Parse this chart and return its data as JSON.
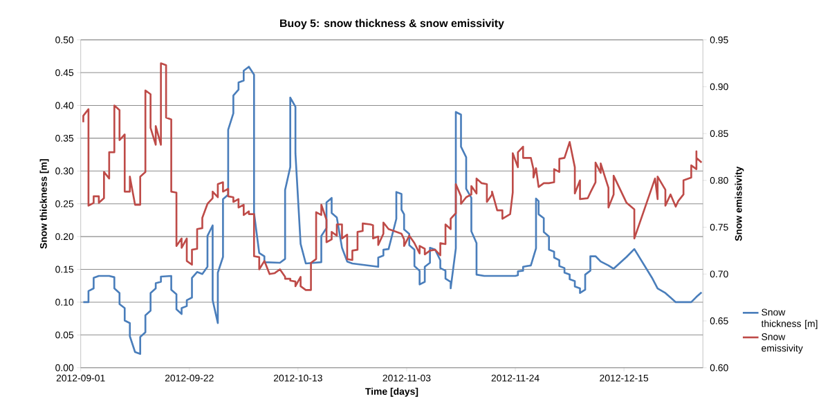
{
  "chart_data": {
    "type": "line",
    "title": "Buoy 5: snow thickness & snow emissivity",
    "xlabel": "Time [days]",
    "ylabel": "Snow thickness [m]",
    "y2label": "Snow emissivity",
    "xlim": [
      "2012-09-01",
      "2012-12-30T06:00"
    ],
    "xticks": [
      "2012-09-01",
      "2012-09-22",
      "2012-10-13",
      "2012-11-03",
      "2012-11-24",
      "2012-12-15"
    ],
    "ylim": [
      0,
      0.5
    ],
    "yticks": [
      {
        "value": 0,
        "label": "0.00"
      },
      {
        "value": 0.05,
        "label": "0.05"
      },
      {
        "value": 0.1,
        "label": "0.10"
      },
      {
        "value": 0.15,
        "label": "0.15"
      },
      {
        "value": 0.2,
        "label": "0.20"
      },
      {
        "value": 0.25,
        "label": "0.25"
      },
      {
        "value": 0.3,
        "label": "0.30"
      },
      {
        "value": 0.35,
        "label": "0.35"
      },
      {
        "value": 0.4,
        "label": "0.40"
      },
      {
        "value": 0.45,
        "label": "0.45"
      },
      {
        "value": 0.5,
        "label": "0.50"
      }
    ],
    "y2lim": [
      0.6,
      0.95
    ],
    "y2ticks": [
      {
        "value": 0.6,
        "label": "0.60"
      },
      {
        "value": 0.65,
        "label": "0.65"
      },
      {
        "value": 0.7,
        "label": "0.70"
      },
      {
        "value": 0.75,
        "label": "0.75"
      },
      {
        "value": 0.8,
        "label": "0.80"
      },
      {
        "value": 0.85,
        "label": "0.85"
      },
      {
        "value": 0.9,
        "label": "0.90"
      },
      {
        "value": 0.95,
        "label": "0.95"
      }
    ],
    "grid": "y",
    "legend": "right",
    "series": [
      {
        "name": "Snow thickness [m]",
        "color": "#4a7ebb",
        "x": [
          "2012-09-01T12:00",
          "2012-09-02T12:00",
          "2012-09-02T12:00",
          "2012-09-03T12:00",
          "2012-09-03T12:00",
          "2012-09-04T12:00",
          "2012-09-06T12:00",
          "2012-09-07T12:00",
          "2012-09-07T12:00",
          "2012-09-08T12:00",
          "2012-09-08T12:00",
          "2012-09-09T12:00",
          "2012-09-09T12:00",
          "2012-09-10T12:00",
          "2012-09-10T12:00",
          "2012-09-11T12:00",
          "2012-09-12T12:00",
          "2012-09-12T12:00",
          "2012-09-13T12:00",
          "2012-09-13T12:00",
          "2012-09-14T12:00",
          "2012-09-14T12:00",
          "2012-09-15T12:00",
          "2012-09-15T12:00",
          "2012-09-16T12:00",
          "2012-09-16T12:00",
          "2012-09-18T12:00",
          "2012-09-18T12:00",
          "2012-09-19T12:00",
          "2012-09-19T12:00",
          "2012-09-20T12:00",
          "2012-09-20T12:00",
          "2012-09-21T12:00",
          "2012-09-21T12:00",
          "2012-09-22T12:00",
          "2012-09-22T12:00",
          "2012-09-23T12:00",
          "2012-09-24T12:00",
          "2012-09-25T12:00",
          "2012-09-25T12:00",
          "2012-09-26T12:00",
          "2012-09-26T12:00",
          "2012-09-27T12:00",
          "2012-09-27T12:00",
          "2012-09-28T12:00",
          "2012-09-28T12:00",
          "2012-09-29T12:00",
          "2012-09-29T12:00",
          "2012-09-30T12:00",
          "2012-09-30T12:00",
          "2012-10-01T12:00",
          "2012-10-01T12:00",
          "2012-10-02T12:00",
          "2012-10-02T12:00",
          "2012-10-03T12:00",
          "2012-10-04T12:00",
          "2012-10-04T12:00",
          "2012-10-05T12:00",
          "2012-10-06T12:00",
          "2012-10-06T12:00",
          "2012-10-09T12:00",
          "2012-10-10T12:00",
          "2012-10-10T12:00",
          "2012-10-11T12:00",
          "2012-10-11T12:00",
          "2012-10-12T12:00",
          "2012-10-12T12:00",
          "2012-10-13T12:00",
          "2012-10-14T12:00",
          "2012-10-17T12:00",
          "2012-10-17T12:00",
          "2012-10-18T12:00",
          "2012-10-18T12:00",
          "2012-10-19T12:00",
          "2012-10-19T12:00",
          "2012-10-20T12:00",
          "2012-10-21T12:00",
          "2012-10-22T12:00",
          "2012-10-23T12:00",
          "2012-10-28T12:00",
          "2012-10-28T12:00",
          "2012-10-29T12:00",
          "2012-10-29T12:00",
          "2012-10-30T12:00",
          "2012-11-01",
          "2012-11-01",
          "2012-11-02",
          "2012-11-02",
          "2012-11-02T12:00",
          "2012-11-02T12:00",
          "2012-11-03T12:00",
          "2012-11-03T12:00",
          "2012-11-04T12:00",
          "2012-11-04T12:00",
          "2012-11-05T12:00",
          "2012-11-05T12:00",
          "2012-11-06T12:00",
          "2012-11-06T12:00",
          "2012-11-07T12:00",
          "2012-11-07T12:00",
          "2012-11-08T12:00",
          "2012-11-09T12:00",
          "2012-11-09T12:00",
          "2012-11-10T12:00",
          "2012-11-10T12:00",
          "2012-11-11T12:00",
          "2012-11-11T12:00",
          "2012-11-12T12:00",
          "2012-11-12T12:00",
          "2012-11-13T12:00",
          "2012-11-13T12:00",
          "2012-11-14T12:00",
          "2012-11-14T12:00",
          "2012-11-15T12:00",
          "2012-11-15T12:00",
          "2012-11-16T12:00",
          "2012-11-16T12:00",
          "2012-11-18",
          "2012-11-24",
          "2012-11-24T12:00",
          "2012-11-24T12:00",
          "2012-11-25T12:00",
          "2012-11-25T12:00",
          "2012-11-27",
          "2012-11-28",
          "2012-11-28",
          "2012-11-28T12:00",
          "2012-11-28T12:00",
          "2012-11-29T12:00",
          "2012-11-29T12:00",
          "2012-11-30T12:00",
          "2012-11-30T12:00",
          "2012-12-01T12:00",
          "2012-12-01T12:00",
          "2012-12-02T12:00",
          "2012-12-02T12:00",
          "2012-12-03T12:00",
          "2012-12-03T12:00",
          "2012-12-04T12:00",
          "2012-12-04T12:00",
          "2012-12-05T12:00",
          "2012-12-05T12:00",
          "2012-12-06T12:00",
          "2012-12-06T12:00",
          "2012-12-07T12:00",
          "2012-12-07T12:00",
          "2012-12-08T12:00",
          "2012-12-08T12:00",
          "2012-12-09T12:00",
          "2012-12-10T12:00",
          "2012-12-12",
          "2012-12-13",
          "2012-12-15T12:00",
          "2012-12-17",
          "2012-12-20T12:00",
          "2012-12-21T12:00",
          "2012-12-23",
          "2012-12-24",
          "2012-12-25",
          "2012-12-28",
          "2012-12-29",
          "2012-12-30"
        ],
        "values": [
          0.1,
          0.1,
          0.117,
          0.121,
          0.137,
          0.14,
          0.14,
          0.138,
          0.121,
          0.114,
          0.097,
          0.091,
          0.072,
          0.068,
          0.048,
          0.024,
          0.021,
          0.047,
          0.054,
          0.08,
          0.087,
          0.114,
          0.121,
          0.129,
          0.131,
          0.139,
          0.14,
          0.119,
          0.112,
          0.089,
          0.082,
          0.091,
          0.094,
          0.103,
          0.107,
          0.137,
          0.146,
          0.143,
          0.154,
          0.201,
          0.217,
          0.103,
          0.068,
          0.145,
          0.169,
          0.257,
          0.264,
          0.363,
          0.388,
          0.415,
          0.424,
          0.435,
          0.438,
          0.453,
          0.459,
          0.447,
          0.236,
          0.175,
          0.17,
          0.161,
          0.16,
          0.166,
          0.271,
          0.306,
          0.412,
          0.398,
          0.327,
          0.189,
          0.159,
          0.161,
          0.201,
          0.213,
          0.252,
          0.259,
          0.236,
          0.229,
          0.183,
          0.162,
          0.159,
          0.154,
          0.168,
          0.171,
          0.18,
          0.181,
          0.227,
          0.268,
          0.265,
          0.241,
          0.234,
          0.211,
          0.204,
          0.187,
          0.18,
          0.155,
          0.148,
          0.127,
          0.131,
          0.154,
          0.16,
          0.183,
          0.18,
          0.164,
          0.152,
          0.148,
          0.136,
          0.131,
          0.121,
          0.182,
          0.39,
          0.386,
          0.337,
          0.321,
          0.273,
          0.259,
          0.208,
          0.19,
          0.142,
          0.14,
          0.14,
          0.141,
          0.147,
          0.148,
          0.154,
          0.156,
          0.182,
          0.258,
          0.254,
          0.234,
          0.228,
          0.207,
          0.2,
          0.18,
          0.177,
          0.168,
          0.164,
          0.155,
          0.152,
          0.145,
          0.142,
          0.135,
          0.132,
          0.124,
          0.121,
          0.114,
          0.119,
          0.142,
          0.148,
          0.17,
          0.17,
          0.162,
          0.156,
          0.151,
          0.169,
          0.181,
          0.136,
          0.121,
          0.114,
          0.107,
          0.1,
          0.1,
          0.108,
          0.115
        ]
      },
      {
        "name": "Snow emissivity",
        "color": "#be4b48",
        "axis": "y2",
        "x": [
          "2012-09-01T12:00",
          "2012-09-01T12:00",
          "2012-09-02T12:00",
          "2012-09-02T12:00",
          "2012-09-03T12:00",
          "2012-09-03T12:00",
          "2012-09-04T12:00",
          "2012-09-04T12:00",
          "2012-09-05T12:00",
          "2012-09-05T12:00",
          "2012-09-06T12:00",
          "2012-09-06T12:00",
          "2012-09-07T12:00",
          "2012-09-07T12:00",
          "2012-09-08T12:00",
          "2012-09-08T12:00",
          "2012-09-09T12:00",
          "2012-09-09T12:00",
          "2012-09-10T12:00",
          "2012-09-10T12:00",
          "2012-09-11T12:00",
          "2012-09-12T12:00",
          "2012-09-12T12:00",
          "2012-09-13T12:00",
          "2012-09-13T12:00",
          "2012-09-14T12:00",
          "2012-09-14T12:00",
          "2012-09-15T12:00",
          "2012-09-15T12:00",
          "2012-09-16T12:00",
          "2012-09-16T12:00",
          "2012-09-17T12:00",
          "2012-09-17T12:00",
          "2012-09-18T12:00",
          "2012-09-18T12:00",
          "2012-09-19T12:00",
          "2012-09-19T12:00",
          "2012-09-20T12:00",
          "2012-09-20T12:00",
          "2012-09-21T12:00",
          "2012-09-21T12:00",
          "2012-09-22T12:00",
          "2012-09-22T12:00",
          "2012-09-23T12:00",
          "2012-09-23T12:00",
          "2012-09-24T12:00",
          "2012-09-24T12:00",
          "2012-09-25T12:00",
          "2012-09-26T12:00",
          "2012-09-26T12:00",
          "2012-09-27T12:00",
          "2012-09-27T12:00",
          "2012-09-28T12:00",
          "2012-09-28T12:00",
          "2012-09-29T12:00",
          "2012-09-29T12:00",
          "2012-09-30T12:00",
          "2012-09-30T12:00",
          "2012-10-01T12:00",
          "2012-10-01T12:00",
          "2012-10-02T12:00",
          "2012-10-02T12:00",
          "2012-10-03T12:00",
          "2012-10-03T12:00",
          "2012-10-04T12:00",
          "2012-10-04T12:00",
          "2012-10-05T12:00",
          "2012-10-05T12:00",
          "2012-10-06T12:00",
          "2012-10-07T12:00",
          "2012-10-08T12:00",
          "2012-10-09T12:00",
          "2012-10-10T12:00",
          "2012-10-10T12:00",
          "2012-10-11T12:00",
          "2012-10-11T12:00",
          "2012-10-12T12:00",
          "2012-10-12T12:00",
          "2012-10-13T12:00",
          "2012-10-13T12:00",
          "2012-10-14T12:00",
          "2012-10-15T12:00",
          "2012-10-15T12:00",
          "2012-10-16T12:00",
          "2012-10-16T12:00",
          "2012-10-17T12:00",
          "2012-10-17T12:00",
          "2012-10-18T12:00",
          "2012-10-18T12:00",
          "2012-10-19T12:00",
          "2012-10-19T12:00",
          "2012-10-20T12:00",
          "2012-10-20T12:00",
          "2012-10-21T12:00",
          "2012-10-21T12:00",
          "2012-10-22T12:00",
          "2012-10-22T12:00",
          "2012-10-23T12:00",
          "2012-10-23T12:00",
          "2012-10-24T12:00",
          "2012-10-24T12:00",
          "2012-10-25T12:00",
          "2012-10-25T12:00",
          "2012-10-27",
          "2012-10-27T12:00",
          "2012-10-27T12:00",
          "2012-10-28T12:00",
          "2012-10-28T12:00",
          "2012-10-29T12:00",
          "2012-10-29T12:00",
          "2012-10-30T12:00",
          "2012-11-01",
          "2012-11-02",
          "2012-11-02T12:00",
          "2012-11-02T12:00",
          "2012-11-03T12:00",
          "2012-11-04T12:00",
          "2012-11-05T12:00",
          "2012-11-05T12:00",
          "2012-11-06T12:00",
          "2012-11-06T12:00",
          "2012-11-07T12:00",
          "2012-11-08T12:00",
          "2012-11-09T12:00",
          "2012-11-09T12:00",
          "2012-11-10T12:00",
          "2012-11-10T12:00",
          "2012-11-11T12:00",
          "2012-11-11T12:00",
          "2012-11-12T12:00",
          "2012-11-12T12:00",
          "2012-11-13T12:00",
          "2012-11-13T12:00",
          "2012-11-14T12:00",
          "2012-11-15T12:00",
          "2012-11-15T12:00",
          "2012-11-16T12:00",
          "2012-11-16T12:00",
          "2012-11-17T12:00",
          "2012-11-18T12:00",
          "2012-11-18T12:00",
          "2012-11-19T12:00",
          "2012-11-19T12:00",
          "2012-11-20T12:00",
          "2012-11-21T12:00",
          "2012-11-21T12:00",
          "2012-11-23",
          "2012-11-23T12:00",
          "2012-11-23T12:00",
          "2012-11-24T12:00",
          "2012-11-24T12:00",
          "2012-11-25T12:00",
          "2012-11-25T12:00",
          "2012-11-27",
          "2012-11-27T12:00",
          "2012-11-27T12:00",
          "2012-11-28",
          "2012-11-28T12:00",
          "2012-11-29T12:00",
          "2012-11-30T12:00",
          "2012-12-01T12:00",
          "2012-12-01T12:00",
          "2012-12-02T12:00",
          "2012-12-02T12:00",
          "2012-12-03T12:00",
          "2012-12-04T12:00",
          "2012-12-05T12:00",
          "2012-12-05T12:00",
          "2012-12-06T12:00",
          "2012-12-06T12:00",
          "2012-12-08",
          "2012-12-08T12:00",
          "2012-12-09T12:00",
          "2012-12-09T12:00",
          "2012-12-10T12:00",
          "2012-12-10T12:00",
          "2012-12-12",
          "2012-12-12",
          "2012-12-13",
          "2012-12-13",
          "2012-12-15T12:00",
          "2012-12-17",
          "2012-12-17",
          "2012-12-21",
          "2012-12-21T12:00",
          "2012-12-21T12:00",
          "2012-12-23",
          "2012-12-23",
          "2012-12-24",
          "2012-12-25",
          "2012-12-25T12:00",
          "2012-12-26T12:00",
          "2012-12-26T12:00",
          "2012-12-28",
          "2012-12-28",
          "2012-12-29",
          "2012-12-29",
          "2012-12-29",
          "2012-12-30"
        ],
        "values": [
          0.862,
          0.869,
          0.876,
          0.773,
          0.776,
          0.783,
          0.783,
          0.776,
          0.781,
          0.809,
          0.802,
          0.83,
          0.83,
          0.88,
          0.875,
          0.843,
          0.849,
          0.788,
          0.788,
          0.804,
          0.774,
          0.774,
          0.804,
          0.809,
          0.896,
          0.892,
          0.856,
          0.838,
          0.858,
          0.838,
          0.925,
          0.923,
          0.867,
          0.865,
          0.788,
          0.787,
          0.73,
          0.738,
          0.728,
          0.738,
          0.714,
          0.71,
          0.726,
          0.727,
          0.748,
          0.749,
          0.76,
          0.775,
          0.781,
          0.788,
          0.782,
          0.796,
          0.798,
          0.788,
          0.791,
          0.783,
          0.782,
          0.777,
          0.78,
          0.771,
          0.774,
          0.763,
          0.767,
          0.764,
          0.764,
          0.719,
          0.718,
          0.705,
          0.714,
          0.7,
          0.701,
          0.705,
          0.697,
          0.695,
          0.695,
          0.693,
          0.692,
          0.687,
          0.697,
          0.687,
          0.683,
          0.683,
          0.712,
          0.716,
          0.766,
          0.763,
          0.774,
          0.758,
          0.734,
          0.737,
          0.745,
          0.741,
          0.753,
          0.753,
          0.738,
          0.742,
          0.716,
          0.715,
          0.725,
          0.726,
          0.745,
          0.746,
          0.754,
          0.753,
          0.752,
          0.738,
          0.74,
          0.731,
          0.743,
          0.755,
          0.748,
          0.745,
          0.743,
          0.737,
          0.73,
          0.741,
          0.733,
          0.722,
          0.73,
          0.727,
          0.721,
          0.725,
          0.726,
          0.72,
          0.733,
          0.732,
          0.753,
          0.748,
          0.759,
          0.765,
          0.796,
          0.783,
          0.775,
          0.782,
          0.785,
          0.794,
          0.786,
          0.802,
          0.797,
          0.796,
          0.777,
          0.785,
          0.788,
          0.768,
          0.768,
          0.759,
          0.764,
          0.787,
          0.829,
          0.814,
          0.83,
          0.836,
          0.824,
          0.824,
          0.812,
          0.803,
          0.813,
          0.793,
          0.797,
          0.797,
          0.798,
          0.812,
          0.809,
          0.823,
          0.824,
          0.841,
          0.814,
          0.786,
          0.8,
          0.78,
          0.781,
          0.787,
          0.798,
          0.819,
          0.808,
          0.818,
          0.792,
          0.771,
          0.785,
          0.805,
          0.776,
          0.769,
          0.738,
          0.802,
          0.78,
          0.804,
          0.79,
          0.773,
          0.785,
          0.772,
          0.778,
          0.785,
          0.8,
          0.803,
          0.816,
          0.812,
          0.831,
          0.824,
          0.819
        ]
      }
    ]
  }
}
